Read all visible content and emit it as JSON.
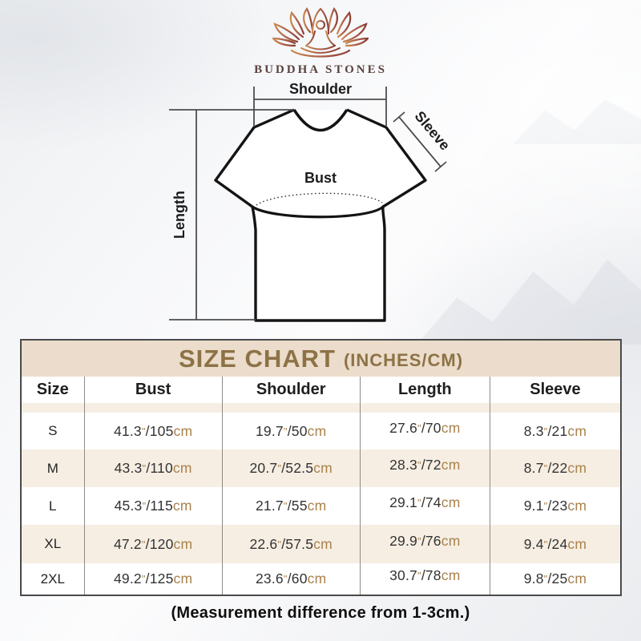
{
  "logo": {
    "brand": "BUDDHA STONES",
    "icon": "lotus-meditation-icon"
  },
  "diagram": {
    "shoulder_label": "Shoulder",
    "sleeve_label": "Sleeve",
    "bust_label": "Bust",
    "length_label": "Length"
  },
  "size_chart": {
    "title": "SIZE CHART",
    "title_suffix": "(INCHES/CM)",
    "columns": [
      "Size",
      "Bust",
      "Shoulder",
      "Length",
      "Sleeve"
    ],
    "units": {
      "inch_mark": "\"",
      "separator": "/",
      "cm_label": "cm"
    },
    "rows": [
      {
        "size": "S",
        "cells": [
          [
            "41.3",
            "105"
          ],
          [
            "19.7",
            "50"
          ],
          [
            "27.6",
            "70"
          ],
          [
            "8.3",
            "21"
          ]
        ]
      },
      {
        "size": "M",
        "cells": [
          [
            "43.3",
            "110"
          ],
          [
            "20.7",
            "52.5"
          ],
          [
            "28.3",
            "72"
          ],
          [
            "8.7",
            "22"
          ]
        ]
      },
      {
        "size": "L",
        "cells": [
          [
            "45.3",
            "115"
          ],
          [
            "21.7",
            "55"
          ],
          [
            "29.1",
            "74"
          ],
          [
            "9.1",
            "23"
          ]
        ]
      },
      {
        "size": "XL",
        "cells": [
          [
            "47.2",
            "120"
          ],
          [
            "22.6",
            "57.5"
          ],
          [
            "29.9",
            "76"
          ],
          [
            "9.4",
            "24"
          ]
        ]
      },
      {
        "size": "2XL",
        "cells": [
          [
            "49.2",
            "125"
          ],
          [
            "23.6",
            "60"
          ],
          [
            "30.7",
            "78"
          ],
          [
            "9.8",
            "25"
          ]
        ]
      }
    ]
  },
  "footer": {
    "note": "(Measurement difference from 1-3cm.)"
  },
  "colors": {
    "accent_gold": "#8d7246",
    "accent_brown": "#a9824c",
    "title_bar_bg": "#ebdccb",
    "row_alt_bg": "#f6eee3",
    "table_border": "#4a4a4a",
    "divider": "#8f8b85",
    "lotus_gradient_from": "#c98a52",
    "lotus_gradient_to": "#8c3c36",
    "shirt_outline": "#141414",
    "measure_line": "#4d4d4d"
  }
}
